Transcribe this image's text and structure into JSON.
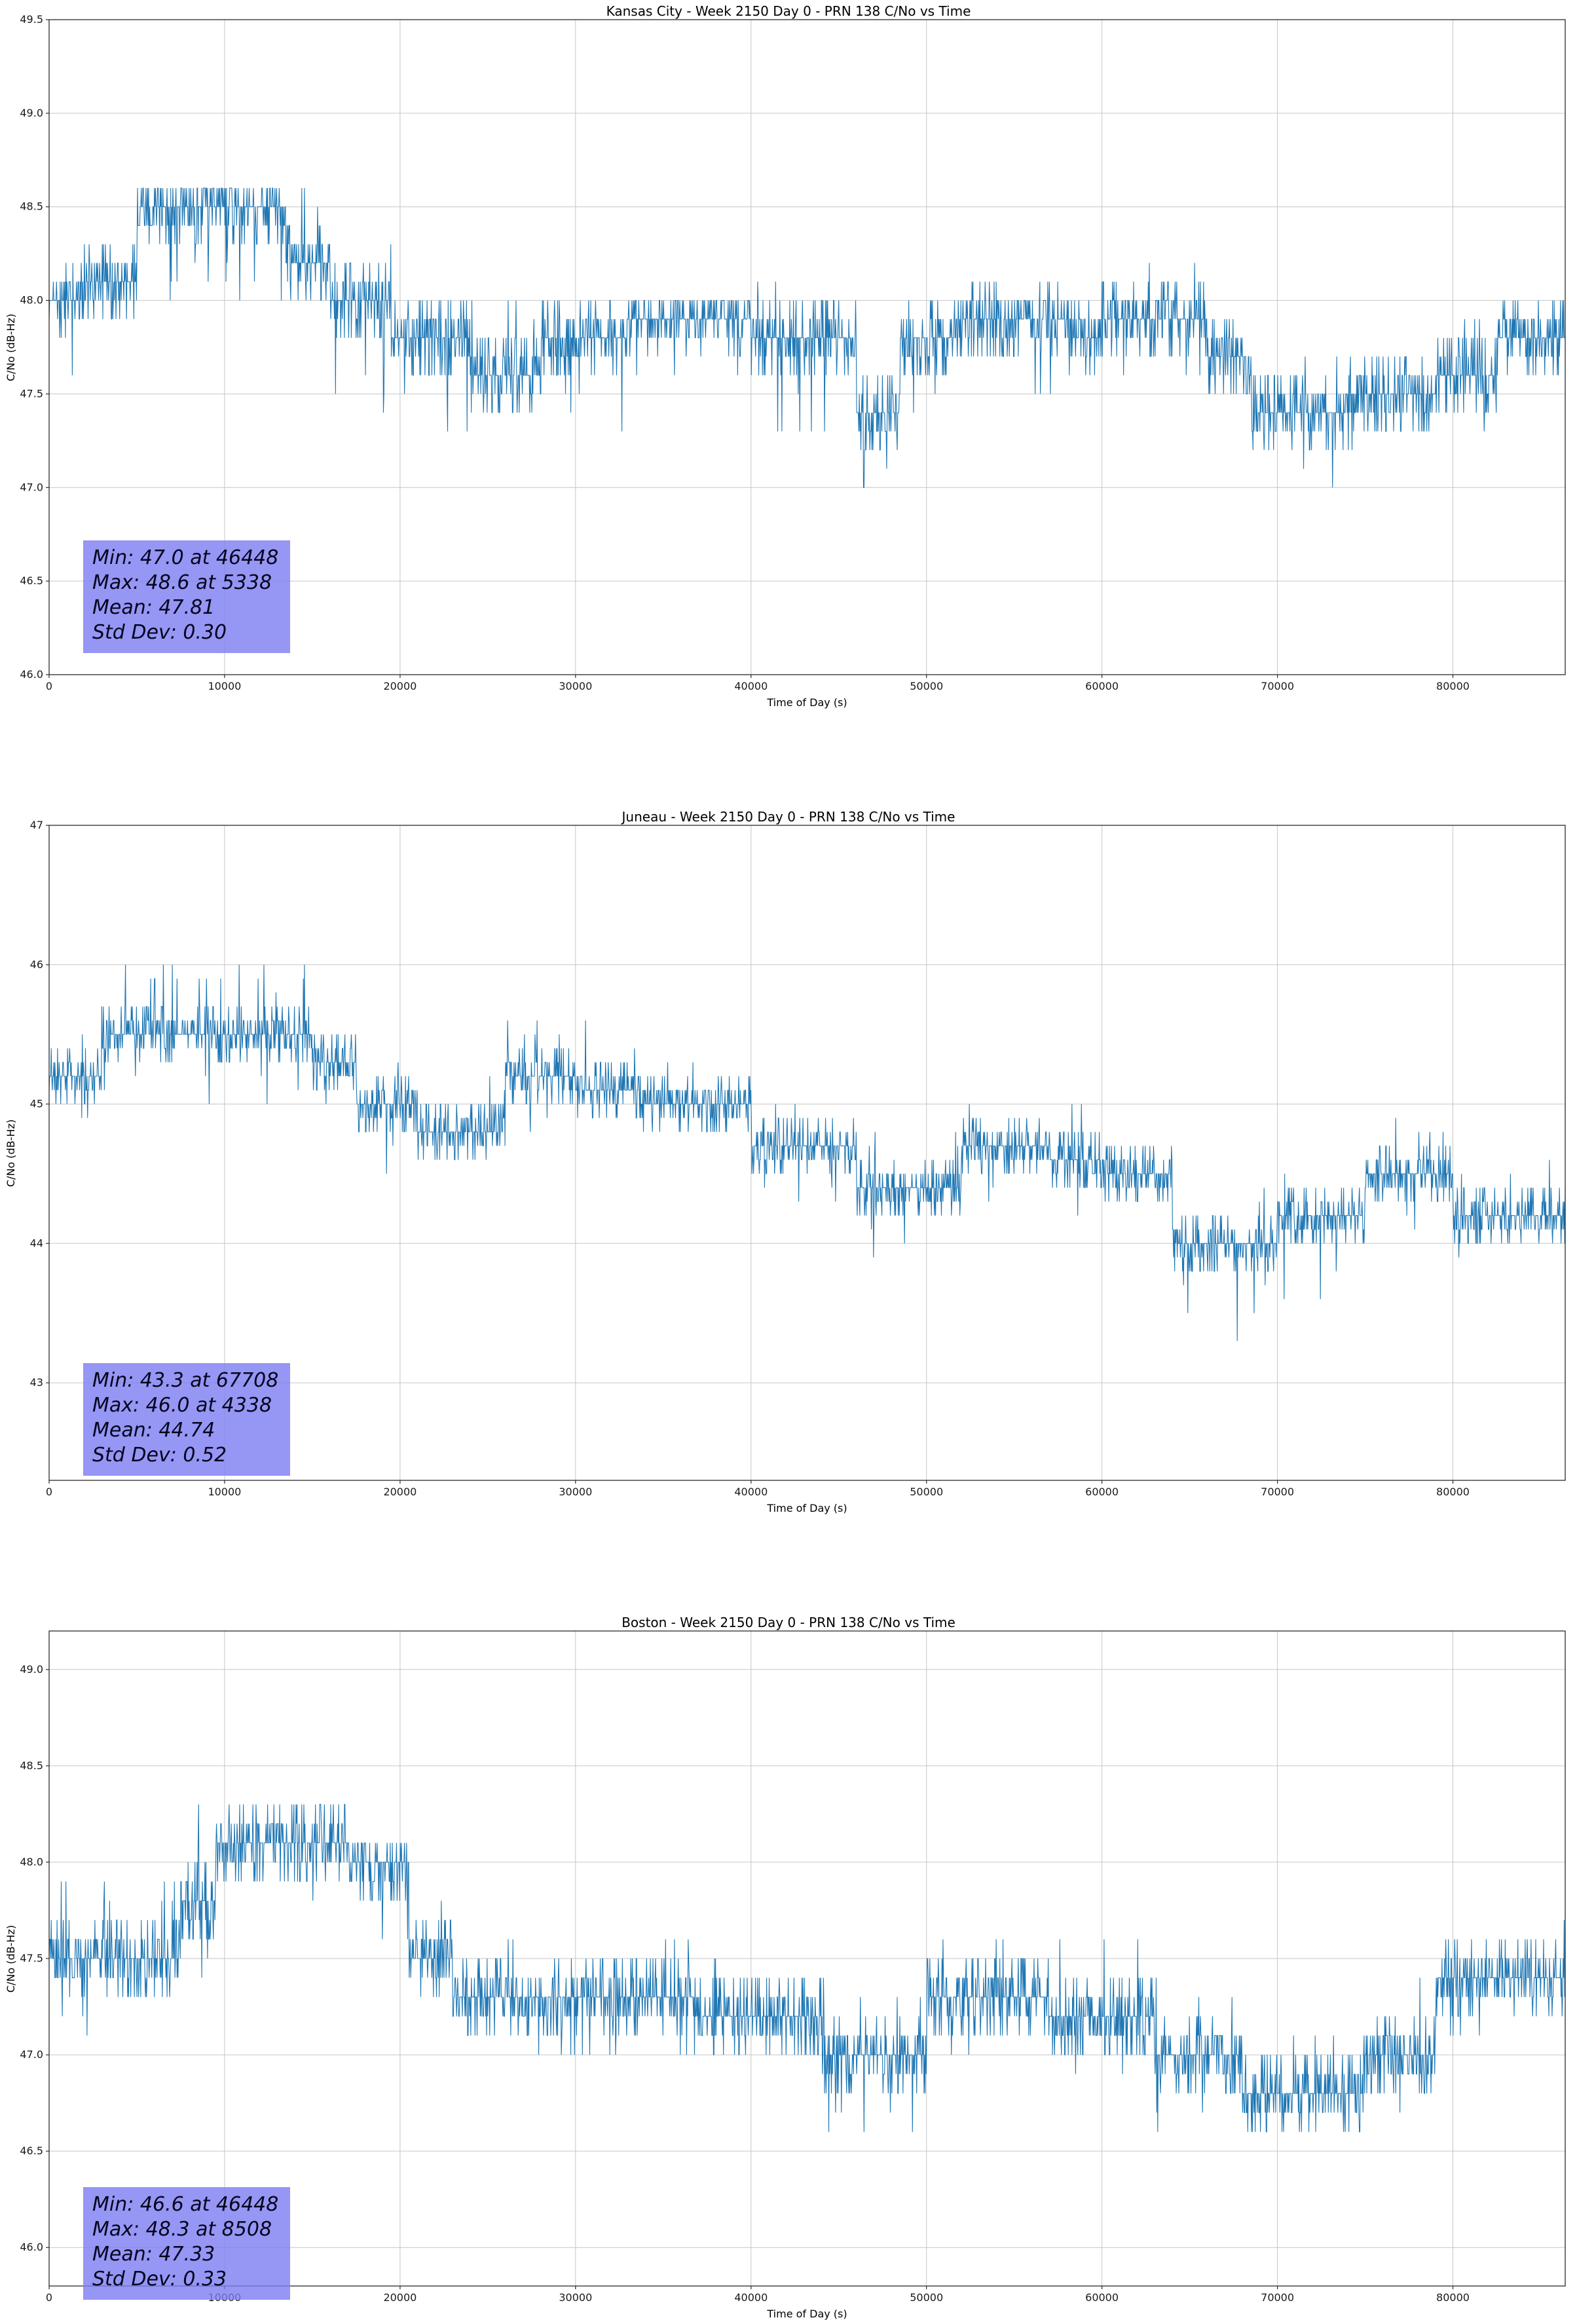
{
  "page": {
    "background": "#ffffff"
  },
  "chart_data": [
    {
      "type": "line",
      "station": "Kansas City",
      "week": 2150,
      "day": 0,
      "prn": 138,
      "title": "Kansas City - Week 2150 Day 0 - PRN 138 C/No vs Time",
      "xlabel": "Time of Day (s)",
      "ylabel": "C/No (dB-Hz)",
      "xlim": [
        0,
        86400
      ],
      "ylim": [
        46.0,
        49.5
      ],
      "xtick_values": [
        0,
        10000,
        20000,
        30000,
        40000,
        50000,
        60000,
        70000,
        80000
      ],
      "xtick_labels": [
        "0",
        "10000",
        "20000",
        "30000",
        "40000",
        "50000",
        "60000",
        "70000",
        "80000"
      ],
      "ytick_values": [
        46.0,
        46.5,
        47.0,
        47.5,
        48.0,
        48.5,
        49.0,
        49.5
      ],
      "ytick_labels": [
        "46.0",
        "46.5",
        "47.0",
        "47.5",
        "48.0",
        "48.5",
        "49.0",
        "49.5"
      ],
      "grid": true,
      "legend": "none",
      "line_color": "#1f77b4",
      "grid_color": "#c6c6c6",
      "stats": {
        "min": {
          "value": 47.0,
          "time": 46448,
          "label": "Min: 47.0 at 46448"
        },
        "max": {
          "value": 48.6,
          "time": 5338,
          "label": "Max: 48.6 at 5338"
        },
        "mean": {
          "value": 47.81,
          "label": "Mean: 47.81"
        },
        "std": {
          "value": 0.3,
          "label": "Std Dev: 0.30"
        }
      },
      "sample_interval_s": 30,
      "series_segments": [
        [
          0,
          1800,
          48.0,
          47.6,
          48.3
        ],
        [
          1800,
          5000,
          48.1,
          47.9,
          48.3
        ],
        [
          5000,
          13500,
          48.5,
          48.0,
          48.6
        ],
        [
          13500,
          16000,
          48.2,
          48.0,
          48.6
        ],
        [
          16000,
          19500,
          48.0,
          47.3,
          48.3
        ],
        [
          19500,
          24000,
          47.8,
          47.3,
          48.0
        ],
        [
          24000,
          28000,
          47.6,
          47.3,
          48.0
        ],
        [
          28000,
          33000,
          47.8,
          47.3,
          48.0
        ],
        [
          33000,
          40000,
          47.9,
          47.4,
          48.0
        ],
        [
          40000,
          46000,
          47.8,
          47.3,
          48.1
        ],
        [
          46000,
          48500,
          47.4,
          47.0,
          47.8
        ],
        [
          48500,
          52000,
          47.8,
          47.3,
          48.0
        ],
        [
          52000,
          58000,
          47.9,
          47.5,
          48.1
        ],
        [
          58000,
          60000,
          47.8,
          47.3,
          48.0
        ],
        [
          60000,
          66000,
          47.9,
          47.5,
          48.3
        ],
        [
          66000,
          68500,
          47.7,
          47.3,
          48.0
        ],
        [
          68500,
          74500,
          47.4,
          47.0,
          47.7
        ],
        [
          74500,
          79000,
          47.5,
          47.3,
          47.7
        ],
        [
          79000,
          82500,
          47.6,
          47.3,
          47.9
        ],
        [
          82500,
          86430,
          47.8,
          47.5,
          48.1
        ]
      ]
    },
    {
      "type": "line",
      "station": "Juneau",
      "week": 2150,
      "day": 0,
      "prn": 138,
      "title": "Juneau - Week 2150 Day 0 - PRN 138 C/No vs Time",
      "xlabel": "Time of Day (s)",
      "ylabel": "C/No (dB-Hz)",
      "xlim": [
        0,
        86400
      ],
      "ylim": [
        42.3,
        47.0
      ],
      "xtick_values": [
        0,
        10000,
        20000,
        30000,
        40000,
        50000,
        60000,
        70000,
        80000
      ],
      "xtick_labels": [
        "0",
        "10000",
        "20000",
        "30000",
        "40000",
        "50000",
        "60000",
        "70000",
        "80000"
      ],
      "ytick_values": [
        43,
        44,
        45,
        46,
        47
      ],
      "ytick_labels": [
        "43",
        "44",
        "45",
        "46",
        "47"
      ],
      "grid": true,
      "legend": "none",
      "line_color": "#1f77b4",
      "grid_color": "#c6c6c6",
      "stats": {
        "min": {
          "value": 43.3,
          "time": 67708,
          "label": "Min: 43.3 at 67708"
        },
        "max": {
          "value": 46.0,
          "time": 4338,
          "label": "Max: 46.0 at 4338"
        },
        "mean": {
          "value": 44.74,
          "label": "Mean: 44.74"
        },
        "std": {
          "value": 0.52,
          "label": "Std Dev: 0.52"
        }
      },
      "sample_interval_s": 30,
      "series_segments": [
        [
          0,
          3000,
          45.2,
          44.8,
          45.6
        ],
        [
          3000,
          15000,
          45.5,
          45.0,
          46.0
        ],
        [
          15000,
          17500,
          45.3,
          45.0,
          45.6
        ],
        [
          17500,
          21000,
          45.0,
          44.5,
          45.4
        ],
        [
          21000,
          26000,
          44.8,
          44.5,
          45.2
        ],
        [
          26000,
          30000,
          45.2,
          44.7,
          45.6
        ],
        [
          30000,
          34000,
          45.1,
          44.8,
          45.6
        ],
        [
          34000,
          40000,
          45.0,
          44.7,
          45.3
        ],
        [
          40000,
          46000,
          44.7,
          44.3,
          45.0
        ],
        [
          46000,
          52000,
          44.4,
          43.9,
          44.8
        ],
        [
          52000,
          57000,
          44.7,
          44.3,
          45.1
        ],
        [
          57000,
          60000,
          44.6,
          44.2,
          45.0
        ],
        [
          60000,
          64000,
          44.5,
          44.1,
          44.8
        ],
        [
          64000,
          70000,
          44.0,
          43.4,
          44.4
        ],
        [
          70000,
          75000,
          44.2,
          43.6,
          44.6
        ],
        [
          75000,
          80000,
          44.5,
          44.1,
          44.9
        ],
        [
          80000,
          86430,
          44.2,
          43.8,
          44.7
        ]
      ]
    },
    {
      "type": "line",
      "station": "Boston",
      "week": 2150,
      "day": 0,
      "prn": 138,
      "title": "Boston - Week 2150 Day 0 - PRN 138 C/No vs Time",
      "xlabel": "Time of Day (s)",
      "ylabel": "C/No (dB-Hz)",
      "xlim": [
        0,
        86400
      ],
      "ylim": [
        45.8,
        49.2
      ],
      "xtick_values": [
        0,
        10000,
        20000,
        30000,
        40000,
        50000,
        60000,
        70000,
        80000
      ],
      "xtick_labels": [
        "0",
        "10000",
        "20000",
        "30000",
        "40000",
        "50000",
        "60000",
        "70000",
        "80000"
      ],
      "ytick_values": [
        46.0,
        46.5,
        47.0,
        47.5,
        48.0,
        48.5,
        49.0
      ],
      "ytick_labels": [
        "46.0",
        "46.5",
        "47.0",
        "47.5",
        "48.0",
        "48.5",
        "49.0"
      ],
      "grid": true,
      "legend": "none",
      "line_color": "#1f77b4",
      "grid_color": "#c6c6c6",
      "stats": {
        "min": {
          "value": 46.6,
          "time": 46448,
          "label": "Min: 46.6 at 46448"
        },
        "max": {
          "value": 48.3,
          "time": 8508,
          "label": "Max: 48.3 at 8508"
        },
        "mean": {
          "value": 47.33,
          "label": "Mean: 47.33"
        },
        "std": {
          "value": 0.33,
          "label": "Std Dev: 0.33"
        }
      },
      "sample_interval_s": 30,
      "series_segments": [
        [
          0,
          2500,
          47.5,
          47.0,
          48.0
        ],
        [
          2500,
          7500,
          47.5,
          47.2,
          47.9
        ],
        [
          7500,
          9500,
          47.8,
          47.4,
          48.2
        ],
        [
          9500,
          17000,
          48.1,
          47.8,
          48.3
        ],
        [
          17000,
          20500,
          48.0,
          47.6,
          48.1
        ],
        [
          20500,
          23000,
          47.5,
          47.2,
          47.8
        ],
        [
          23000,
          30000,
          47.3,
          47.0,
          47.6
        ],
        [
          30000,
          37000,
          47.3,
          47.0,
          47.6
        ],
        [
          37000,
          44000,
          47.2,
          47.0,
          47.5
        ],
        [
          44000,
          50000,
          47.0,
          46.6,
          47.4
        ],
        [
          50000,
          57000,
          47.3,
          47.0,
          47.6
        ],
        [
          57000,
          63000,
          47.2,
          46.9,
          47.6
        ],
        [
          63000,
          68000,
          47.0,
          46.6,
          47.4
        ],
        [
          68000,
          75000,
          46.8,
          46.6,
          47.1
        ],
        [
          75000,
          79000,
          47.0,
          46.6,
          47.4
        ],
        [
          79000,
          86430,
          47.4,
          47.1,
          47.7
        ]
      ]
    }
  ]
}
